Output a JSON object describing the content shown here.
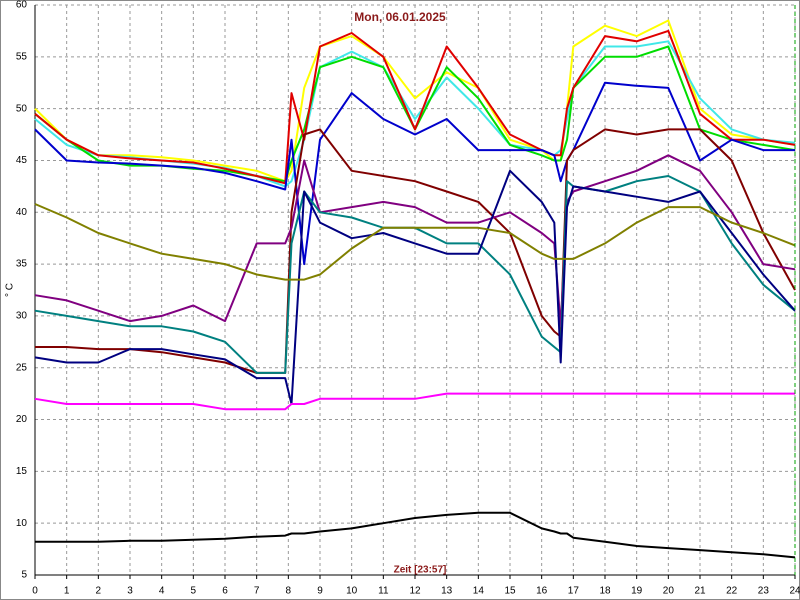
{
  "chart_data": {
    "type": "line",
    "title": "Mon, 06.01.2025",
    "x_label": "Zeit [23:57]",
    "y_label": "° C",
    "x": [
      0,
      1,
      2,
      3,
      4,
      5,
      6,
      7,
      7.9,
      8.1,
      8.5,
      9,
      10,
      11,
      12,
      13,
      14,
      15,
      16,
      16.4,
      16.6,
      16.8,
      17,
      18,
      19,
      20,
      21,
      22,
      23,
      24
    ],
    "xlim": [
      0,
      24
    ],
    "xticks": [
      0,
      1,
      2,
      3,
      4,
      5,
      6,
      7,
      8,
      9,
      10,
      11,
      12,
      13,
      14,
      15,
      16,
      17,
      18,
      19,
      20,
      21,
      22,
      23,
      24
    ],
    "ylim": [
      5,
      60
    ],
    "yticks": [
      5,
      10,
      15,
      20,
      25,
      30,
      35,
      40,
      45,
      50,
      55,
      60
    ],
    "grid": true,
    "series": [
      {
        "color": "#ffff00",
        "values": [
          50,
          47,
          45.5,
          45.5,
          45.3,
          45,
          44.5,
          44,
          43,
          44,
          52,
          56,
          57,
          55,
          51,
          53.5,
          52,
          47,
          46,
          45,
          45,
          50,
          56,
          58,
          57,
          58.5,
          50,
          47.5,
          47,
          46.5
        ]
      },
      {
        "color": "#40e8e8",
        "values": [
          49,
          46.5,
          45.5,
          45.3,
          45,
          44.7,
          44.3,
          43.5,
          42.5,
          43,
          47,
          54,
          55.5,
          54,
          49,
          53,
          50,
          46.5,
          46,
          45.5,
          46,
          49,
          52,
          56,
          56,
          56.5,
          51,
          48,
          47,
          46.7
        ]
      },
      {
        "color": "#00dd00",
        "values": [
          49.5,
          47,
          45,
          44.5,
          44.5,
          44.2,
          44,
          43.5,
          43,
          45,
          48,
          54,
          55,
          54,
          48,
          54,
          51,
          46.5,
          45.5,
          45,
          45,
          47,
          52,
          55,
          55,
          56,
          48,
          47,
          46.5,
          46
        ]
      },
      {
        "color": "#e00000",
        "values": [
          49.5,
          47,
          45.5,
          45.2,
          45,
          44.8,
          44.2,
          43.5,
          42.8,
          51.5,
          47,
          56,
          57.3,
          55,
          48,
          56,
          52,
          47.5,
          46,
          45.5,
          45.5,
          50,
          52,
          57,
          56.5,
          57.5,
          49.5,
          47,
          47,
          46.5
        ]
      },
      {
        "color": "#0000cc",
        "values": [
          48,
          45,
          44.8,
          44.7,
          44.5,
          44.3,
          43.8,
          43,
          42.2,
          47,
          35,
          47,
          51.5,
          49,
          47.5,
          49,
          46,
          46,
          46,
          45.5,
          43,
          45,
          46,
          52.5,
          52.2,
          52,
          45,
          47,
          46,
          46
        ]
      },
      {
        "color": "#800000",
        "values": [
          27,
          27,
          26.8,
          26.8,
          26.5,
          26,
          25.5,
          24.5,
          24.5,
          40,
          47.5,
          48,
          44,
          43.5,
          43,
          42,
          41,
          38,
          30,
          28.5,
          28,
          45,
          46,
          48,
          47.5,
          48,
          48,
          45,
          38,
          32.5
        ]
      },
      {
        "color": "#800080",
        "values": [
          32,
          31.5,
          30.5,
          29.5,
          30,
          31,
          29.5,
          37,
          37,
          38.5,
          45,
          40,
          40.5,
          41,
          40.5,
          39,
          39,
          40,
          38,
          37,
          29,
          41,
          42,
          43,
          44,
          45.5,
          44,
          40,
          35,
          34.5
        ]
      },
      {
        "color": "#008080",
        "values": [
          30.5,
          30,
          29.5,
          29,
          29,
          28.5,
          27.5,
          24.5,
          24.5,
          37,
          42,
          40,
          39.5,
          38.5,
          38.5,
          37,
          37,
          34,
          28,
          27,
          26.5,
          43,
          42.5,
          42,
          43,
          43.5,
          42,
          37,
          33,
          30.5
        ]
      },
      {
        "color": "#000080",
        "values": [
          26,
          25.5,
          25.5,
          26.8,
          26.8,
          26.3,
          25.8,
          24,
          24,
          21.5,
          42,
          39,
          37.5,
          38,
          37,
          36,
          36,
          44,
          41,
          39,
          25.5,
          40.5,
          42.5,
          42,
          41.5,
          41,
          42,
          38,
          34,
          30.5
        ]
      },
      {
        "color": "#808000",
        "values": [
          40.8,
          39.5,
          38,
          37,
          36,
          35.5,
          35,
          34,
          33.5,
          33.5,
          33.5,
          34,
          36.5,
          38.5,
          38.5,
          38.5,
          38.5,
          38,
          36,
          35.5,
          35.5,
          35.5,
          35.5,
          37,
          39,
          40.5,
          40.5,
          39,
          38,
          36.8
        ]
      },
      {
        "color": "#ff00ff",
        "values": [
          22,
          21.5,
          21.5,
          21.5,
          21.5,
          21.5,
          21,
          21,
          21,
          21.5,
          21.5,
          22,
          22,
          22,
          22,
          22.5,
          22.5,
          22.5,
          22.5,
          22.5,
          22.5,
          22.5,
          22.5,
          22.5,
          22.5,
          22.5,
          22.5,
          22.5,
          22.5,
          22.5
        ]
      },
      {
        "color": "#000000",
        "values": [
          8.2,
          8.2,
          8.2,
          8.3,
          8.3,
          8.4,
          8.5,
          8.7,
          8.8,
          9,
          9,
          9.2,
          9.5,
          10,
          10.5,
          10.8,
          11,
          11,
          9.5,
          9.2,
          9,
          9,
          8.6,
          8.2,
          7.8,
          7.6,
          7.4,
          7.2,
          7,
          6.7
        ]
      }
    ]
  }
}
